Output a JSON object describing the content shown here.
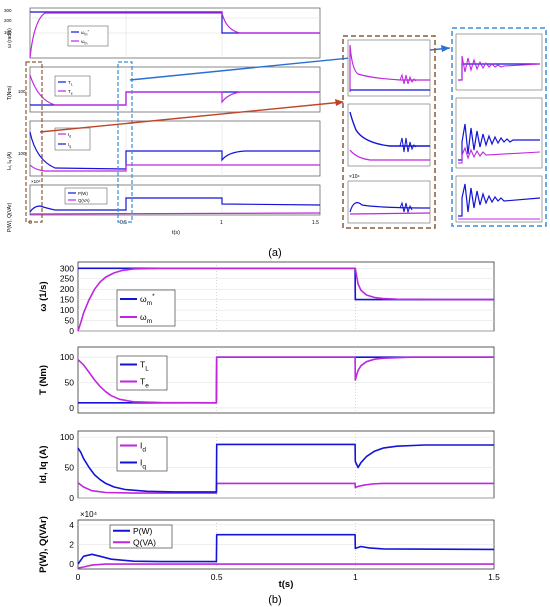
{
  "colors": {
    "blue": "#1414d6",
    "magenta": "#c026e0",
    "brown": "#8b5a3c",
    "dash_blue": "#3a8fd8",
    "arrow_blue": "#2b6fd6",
    "arrow_red": "#c0442a",
    "green": "#2aa02a"
  },
  "captions": {
    "a": "(a)",
    "b": "(b)"
  },
  "chart_data": [
    {
      "id": "speed",
      "type": "line",
      "ylabel": "ω (1/s)",
      "ylim": [
        0,
        330
      ],
      "yticks": [
        0,
        50,
        100,
        150,
        200,
        250,
        300
      ],
      "xlim": [
        0,
        1.5
      ],
      "xtick_labels": [],
      "legend": "center-right",
      "series": [
        {
          "name": "ωm*",
          "legend_base": "ω",
          "legend_sub": "m",
          "legend_sup": "*",
          "color": "blue",
          "points": [
            [
              0,
              300
            ],
            [
              0.999,
              300
            ],
            [
              1.0,
              150
            ],
            [
              1.5,
              150
            ]
          ]
        },
        {
          "name": "ωm",
          "legend_base": "ω",
          "legend_sub": "m",
          "legend_sup": "",
          "color": "magenta",
          "points": [
            [
              0,
              0
            ],
            [
              0.01,
              40
            ],
            [
              0.02,
              85
            ],
            [
              0.04,
              150
            ],
            [
              0.06,
              200
            ],
            [
              0.08,
              235
            ],
            [
              0.1,
              258
            ],
            [
              0.13,
              278
            ],
            [
              0.16,
              290
            ],
            [
              0.2,
              297
            ],
            [
              0.3,
              300
            ],
            [
              1.0,
              300
            ],
            [
              1.005,
              260
            ],
            [
              1.01,
              225
            ],
            [
              1.02,
              195
            ],
            [
              1.04,
              172
            ],
            [
              1.07,
              160
            ],
            [
              1.1,
              155
            ],
            [
              1.15,
              152
            ],
            [
              1.3,
              150
            ],
            [
              1.5,
              150
            ]
          ]
        }
      ]
    },
    {
      "id": "torque",
      "type": "line",
      "ylabel": "T (Nm)",
      "ylim": [
        -10,
        120
      ],
      "yticks": [
        0,
        50,
        100
      ],
      "xlim": [
        0,
        1.5
      ],
      "xtick_labels": [],
      "legend": "top-left",
      "series": [
        {
          "name": "TL",
          "legend_base": "T",
          "legend_sub": "L",
          "legend_sup": "",
          "color": "blue",
          "points": [
            [
              0,
              10
            ],
            [
              0.499,
              10
            ],
            [
              0.5,
              100
            ],
            [
              1.5,
              100
            ]
          ]
        },
        {
          "name": "Te",
          "legend_base": "T",
          "legend_sub": "e",
          "legend_sup": "",
          "color": "magenta",
          "points": [
            [
              0,
              95
            ],
            [
              0.02,
              85
            ],
            [
              0.04,
              70
            ],
            [
              0.06,
              55
            ],
            [
              0.08,
              42
            ],
            [
              0.1,
              32
            ],
            [
              0.12,
              24
            ],
            [
              0.15,
              17
            ],
            [
              0.2,
              12
            ],
            [
              0.3,
              10.5
            ],
            [
              0.499,
              10
            ],
            [
              0.5,
              100
            ],
            [
              0.999,
              100
            ],
            [
              1.0,
              55
            ],
            [
              1.005,
              65
            ],
            [
              1.01,
              74
            ],
            [
              1.02,
              83
            ],
            [
              1.04,
              91
            ],
            [
              1.07,
              96
            ],
            [
              1.1,
              98
            ],
            [
              1.2,
              100
            ],
            [
              1.5,
              100
            ]
          ]
        }
      ]
    },
    {
      "id": "current",
      "type": "line",
      "ylabel": "Id, Iq (A)",
      "ylim": [
        0,
        110
      ],
      "yticks": [
        0,
        50,
        100
      ],
      "xlim": [
        0,
        1.5
      ],
      "xtick_labels": [],
      "legend": "top-left",
      "series": [
        {
          "name": "Id",
          "legend_base": "I",
          "legend_sub": "d",
          "legend_sup": "",
          "color": "magenta",
          "points": [
            [
              0,
              25
            ],
            [
              0.02,
              18
            ],
            [
              0.05,
              12
            ],
            [
              0.1,
              9
            ],
            [
              0.2,
              8
            ],
            [
              0.499,
              8
            ],
            [
              0.5,
              24
            ],
            [
              0.999,
              24
            ],
            [
              1.0,
              17
            ],
            [
              1.01,
              19
            ],
            [
              1.03,
              21
            ],
            [
              1.06,
              23
            ],
            [
              1.1,
              24
            ],
            [
              1.5,
              24
            ]
          ]
        },
        {
          "name": "Iq",
          "legend_base": "I",
          "legend_sub": "q",
          "legend_sup": "",
          "color": "blue",
          "points": [
            [
              0,
              82
            ],
            [
              0.01,
              75
            ],
            [
              0.02,
              65
            ],
            [
              0.04,
              50
            ],
            [
              0.06,
              38
            ],
            [
              0.08,
              30
            ],
            [
              0.1,
              24
            ],
            [
              0.13,
              18
            ],
            [
              0.17,
              14
            ],
            [
              0.25,
              11
            ],
            [
              0.35,
              10
            ],
            [
              0.499,
              10
            ],
            [
              0.5,
              88
            ],
            [
              0.999,
              88
            ],
            [
              1.0,
              60
            ],
            [
              1.01,
              50
            ],
            [
              1.02,
              58
            ],
            [
              1.04,
              68
            ],
            [
              1.07,
              77
            ],
            [
              1.1,
              82
            ],
            [
              1.15,
              85
            ],
            [
              1.25,
              87
            ],
            [
              1.5,
              87
            ]
          ]
        }
      ]
    },
    {
      "id": "power",
      "type": "line",
      "ylabel": "P(W), Q(VAr)",
      "ylim": [
        -0.5,
        4.5
      ],
      "yticks": [
        0,
        2,
        4
      ],
      "ytick_labels": [
        "0",
        "2",
        "4"
      ],
      "multiplier": "×10⁴",
      "xlim": [
        0,
        1.5
      ],
      "xticks": [
        0,
        0.5,
        1,
        1.5
      ],
      "xtick_labels": [
        "0",
        "0.5",
        "1",
        "1.5"
      ],
      "xlabel": "t(s)",
      "legend": "top-left",
      "series": [
        {
          "name": "P(W)",
          "legend_base": "P(W)",
          "legend_sub": "",
          "legend_sup": "",
          "color": "blue",
          "points": [
            [
              0,
              0
            ],
            [
              0.02,
              0.8
            ],
            [
              0.05,
              1.0
            ],
            [
              0.08,
              0.8
            ],
            [
              0.12,
              0.5
            ],
            [
              0.2,
              0.3
            ],
            [
              0.3,
              0.25
            ],
            [
              0.499,
              0.25
            ],
            [
              0.5,
              3.0
            ],
            [
              0.999,
              3.0
            ],
            [
              1.0,
              1.6
            ],
            [
              1.02,
              1.8
            ],
            [
              1.05,
              1.65
            ],
            [
              1.1,
              1.55
            ],
            [
              1.5,
              1.5
            ]
          ]
        },
        {
          "name": "Q(VA)",
          "legend_base": "Q(VA)",
          "legend_sub": "",
          "legend_sup": "",
          "color": "magenta",
          "points": [
            [
              0,
              -0.4
            ],
            [
              0.02,
              -0.3
            ],
            [
              0.05,
              -0.1
            ],
            [
              0.1,
              0
            ],
            [
              1.5,
              0
            ]
          ]
        }
      ]
    }
  ]
}
